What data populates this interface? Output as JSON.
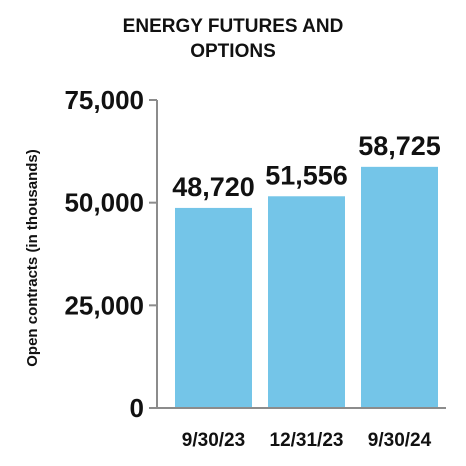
{
  "chart_data": {
    "type": "bar",
    "title": "ENERGY FUTURES AND\nOPTIONS",
    "ylabel": "Open contracts (in thousands)",
    "xlabel": "",
    "categories": [
      "9/30/23",
      "12/31/23",
      "9/30/24"
    ],
    "values": [
      48720,
      51556,
      58725
    ],
    "value_labels": [
      "48,720",
      "51,556",
      "58,725"
    ],
    "ylim": [
      0,
      75000
    ],
    "yticks": [
      0,
      25000,
      50000,
      75000
    ],
    "ytick_labels": [
      "0",
      "25,000",
      "50,000",
      "75,000"
    ],
    "grid": false,
    "legend": "none",
    "bar_color": "#74C5E8",
    "axis_color": "#8C8C8C"
  }
}
